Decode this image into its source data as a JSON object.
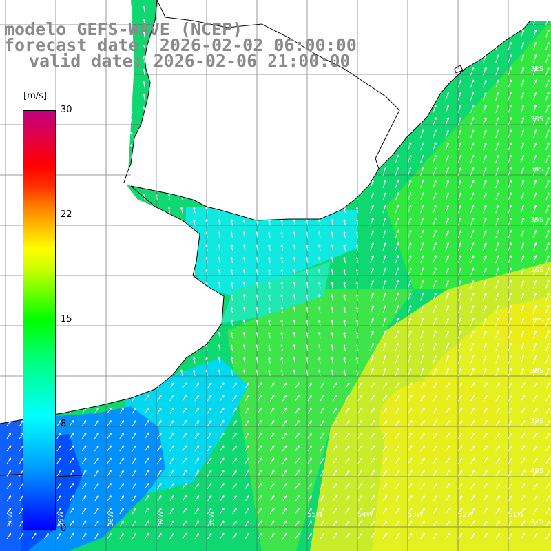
{
  "title": {
    "line1": "modelo GEFS-WAVE (NCEP)",
    "line2": "forecast date: 2026-02-02 06:00:00",
    "line3": "valid date: 2026-02-06 21:00:00"
  },
  "colorbar": {
    "unit": "[m/s]",
    "min": 0,
    "max": 30,
    "ticks": [
      "30",
      "22",
      "15",
      "8",
      "0"
    ]
  },
  "lat_labels": [
    "32S",
    "33S",
    "34S",
    "35S",
    "36S",
    "37S",
    "38S",
    "39S",
    "40S",
    "41S"
  ],
  "lon_labels": [
    "60W",
    "59W",
    "58W",
    "57W",
    "56W",
    "55W",
    "54W",
    "53W",
    "52W",
    "51W"
  ]
}
